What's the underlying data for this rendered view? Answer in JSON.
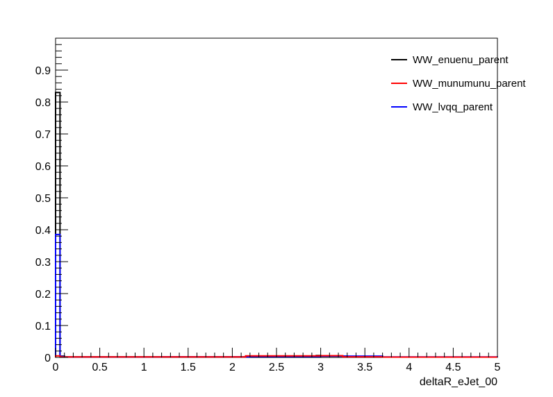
{
  "chart_data": {
    "type": "line",
    "title": "",
    "xlabel": "deltaR_eJet_00",
    "ylabel": "",
    "xlim": [
      0,
      5
    ],
    "ylim": [
      0,
      1
    ],
    "grid": false,
    "legend_position": "top-right",
    "x_ticks": [
      "0",
      "0.5",
      "1",
      "1.5",
      "2",
      "2.5",
      "3",
      "3.5",
      "4",
      "4.5",
      "5"
    ],
    "y_ticks": [
      "0",
      "0.1",
      "0.2",
      "0.3",
      "0.4",
      "0.5",
      "0.6",
      "0.7",
      "0.8",
      "0.9"
    ],
    "bin_width": 0.05,
    "series": [
      {
        "name": "WW_enuenu_parent",
        "color": "#000000",
        "points": [
          [
            0,
            0.83
          ],
          [
            0.05,
            0.004
          ],
          [
            0.1,
            0.0015
          ],
          [
            1.2,
            0.0015
          ],
          [
            2.2,
            0.004
          ],
          [
            2.95,
            0.006
          ],
          [
            3.0,
            0.004
          ],
          [
            3.3,
            0.002
          ],
          [
            3.7,
            0.001
          ],
          [
            5,
            0.001
          ]
        ]
      },
      {
        "name": "WW_munumunu_parent",
        "color": "#ff0000",
        "points": [
          [
            0,
            0.005
          ],
          [
            0.05,
            0.0015
          ],
          [
            1.2,
            0.0015
          ],
          [
            2.15,
            0.005
          ],
          [
            3.0,
            0.0055
          ],
          [
            3.25,
            0.002
          ],
          [
            3.7,
            0.001
          ],
          [
            5,
            0.001
          ]
        ]
      },
      {
        "name": "WW_lvqq_parent",
        "color": "#0000ff",
        "points": [
          [
            0,
            0.385
          ],
          [
            0.05,
            0.003
          ],
          [
            0.1,
            0.0015
          ],
          [
            1.2,
            0.002
          ],
          [
            2.2,
            0.003
          ],
          [
            3.0,
            0.004
          ],
          [
            3.7,
            0.0015
          ],
          [
            5,
            0.001
          ]
        ]
      }
    ]
  }
}
